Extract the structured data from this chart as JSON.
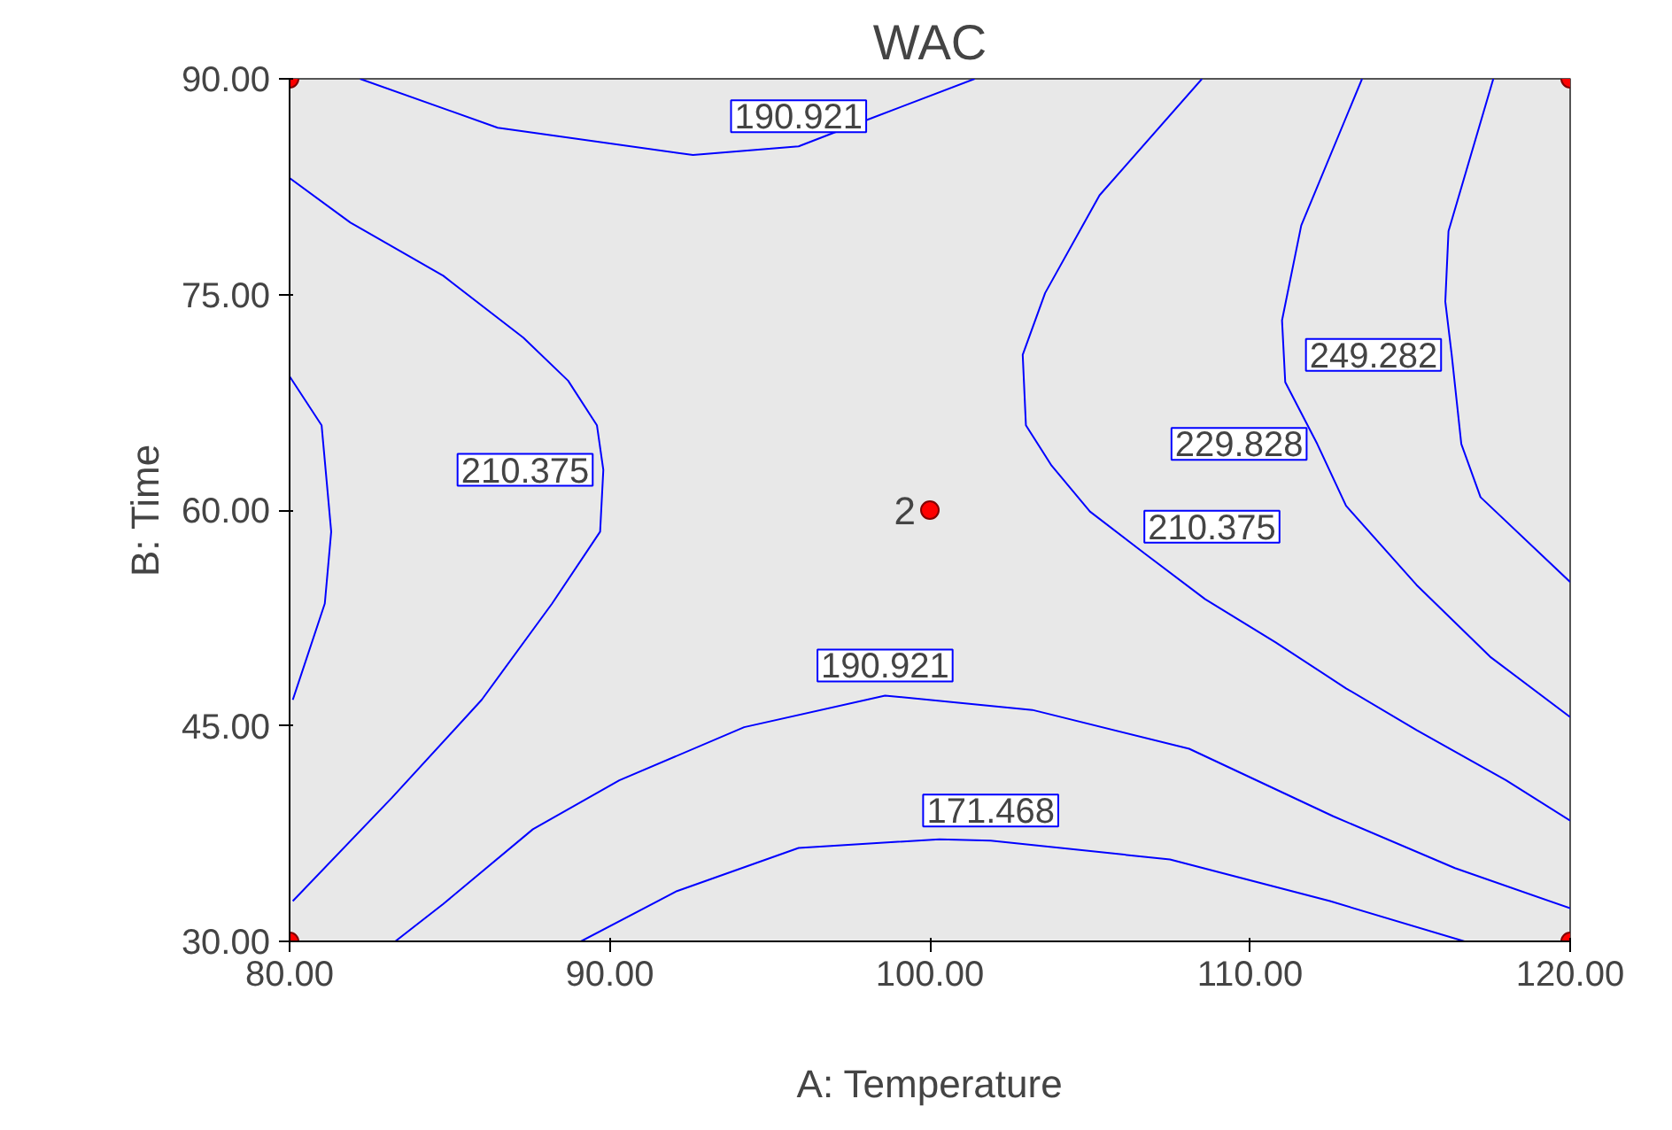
{
  "chart_data": {
    "type": "line",
    "title": "WAC",
    "xlabel": "A: Temperature",
    "ylabel": "B: Time",
    "xlim": [
      80,
      120
    ],
    "ylim": [
      30,
      90
    ],
    "xticks": [
      {
        "value": 80,
        "label": "80.00"
      },
      {
        "value": 90,
        "label": "90.00"
      },
      {
        "value": 100,
        "label": "100.00"
      },
      {
        "value": 110,
        "label": "110.00"
      },
      {
        "value": 120,
        "label": "120.00"
      }
    ],
    "yticks": [
      {
        "value": 30,
        "label": "30.00"
      },
      {
        "value": 45,
        "label": "45.00"
      },
      {
        "value": 60,
        "label": "60.00"
      },
      {
        "value": 75,
        "label": "75.00"
      },
      {
        "value": 90,
        "label": "90.00"
      }
    ],
    "grid": false,
    "legend": false,
    "marker": "none",
    "line_style": "solid",
    "series": [
      {
        "name": "190.921",
        "color": "#0000ff",
        "x": [
          82.2,
          86.5,
          92.6,
          95.9,
          98.1,
          101.4
        ],
        "values": [
          90,
          86.6,
          84.7,
          85.3,
          87.2,
          90
        ]
      },
      {
        "color": "#0000ff",
        "x": [
          80,
          81.0,
          81.3,
          81.1,
          80.1
        ],
        "values": [
          69.3,
          65.9,
          58.5,
          53.5,
          46.8
        ]
      },
      {
        "name": "210.375",
        "color": "#0000ff",
        "x": [
          80,
          81.9,
          84.8,
          87.3,
          88.7,
          89.6,
          89.8,
          89.7,
          88.2,
          86.0,
          83.2,
          80.1
        ],
        "values": [
          83.1,
          80.0,
          76.3,
          72.0,
          69.0,
          65.9,
          62.8,
          58.5,
          53.5,
          46.8,
          40.0,
          32.8
        ]
      },
      {
        "name": "210.375",
        "color": "#0000ff",
        "x": [
          108.5,
          105.3,
          103.6,
          102.9,
          103.0,
          103.8,
          105.0,
          106.7,
          108.6,
          110.8,
          113.0,
          115.2,
          118.0,
          120
        ],
        "values": [
          90,
          81.9,
          75.1,
          70.8,
          65.9,
          63.1,
          59.9,
          57.0,
          53.8,
          50.8,
          47.6,
          44.7,
          41.2,
          38.4
        ]
      },
      {
        "name": "229.828",
        "color": "#0000ff",
        "x": [
          113.5,
          111.6,
          111.0,
          111.1,
          112.1,
          113.0,
          115.2,
          117.5,
          120
        ],
        "values": [
          90,
          79.8,
          73.2,
          68.9,
          64.6,
          60.3,
          54.8,
          49.8,
          45.6
        ]
      },
      {
        "name": "249.282",
        "color": "#0000ff",
        "x": [
          117.6,
          116.2,
          116.1,
          116.3,
          116.6,
          117.2,
          120
        ],
        "values": [
          90,
          79.4,
          74.5,
          70.8,
          64.6,
          60.9,
          55.0
        ]
      },
      {
        "name": "190.921",
        "color": "#0000ff",
        "x": [
          83.3,
          84.8,
          87.6,
          90.3,
          94.2,
          98.6,
          103.2,
          108.1,
          112.6,
          116.4,
          120
        ],
        "values": [
          30,
          32.6,
          37.8,
          41.2,
          44.9,
          47.1,
          46.1,
          43.4,
          38.7,
          35.1,
          32.3
        ]
      },
      {
        "name": "171.468",
        "color": "#0000ff",
        "x": [
          89.1,
          92.1,
          95.9,
          100.3,
          101.9,
          107.5,
          112.5,
          116.7
        ],
        "values": [
          30,
          33.5,
          36.5,
          37.1,
          37.0,
          35.7,
          32.8,
          30
        ]
      },
      {
        "type": "scatter",
        "marker": "circle",
        "color": "#ff0000",
        "x": [
          80,
          120,
          80,
          120,
          100
        ],
        "values": [
          30,
          30,
          90,
          90,
          60
        ]
      }
    ],
    "annotations": [
      {
        "text": "2",
        "x": 100,
        "y": 60
      }
    ]
  }
}
